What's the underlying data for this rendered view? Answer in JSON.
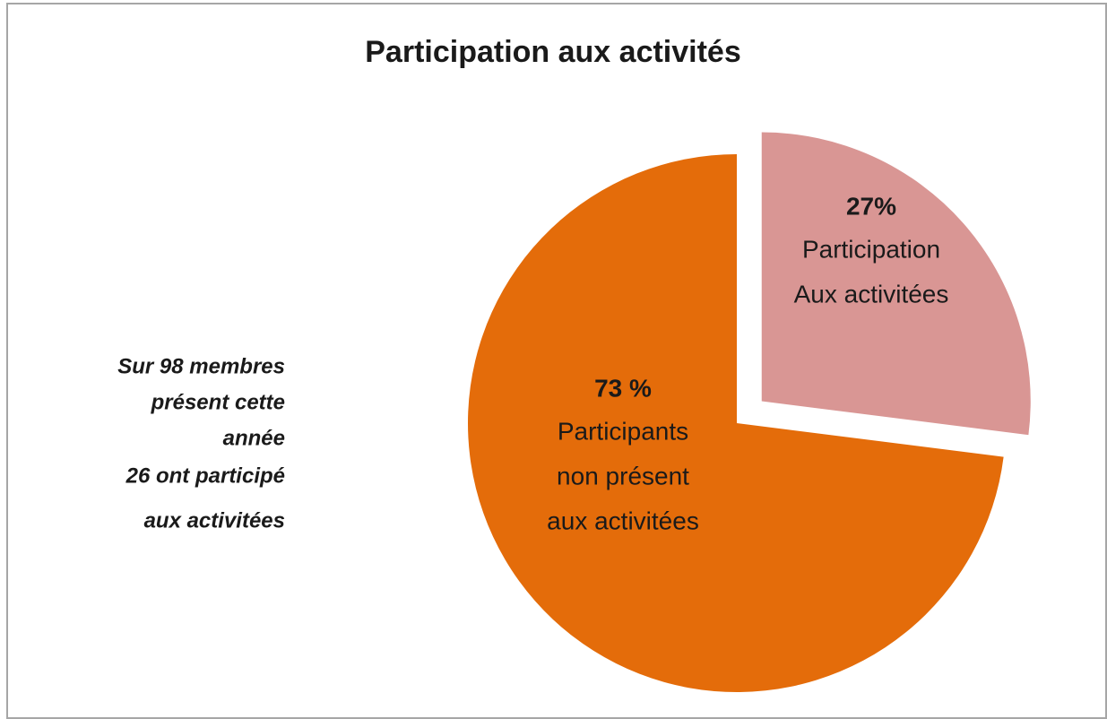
{
  "chart_data": {
    "type": "pie",
    "title": "Participation aux activités",
    "categories": [
      [
        "Participation",
        "Aux activitées"
      ],
      [
        "Participants",
        "non présent",
        "aux activitées"
      ]
    ],
    "values": [
      27,
      73
    ],
    "value_labels": [
      "27%",
      "73 %"
    ],
    "colors": [
      "#d99694",
      "#e46c0a"
    ],
    "exploded": [
      true,
      false
    ],
    "annotation": [
      "Sur 98 membres",
      "présent cette",
      "année",
      "26 ont participé",
      "aux  activitées"
    ]
  }
}
